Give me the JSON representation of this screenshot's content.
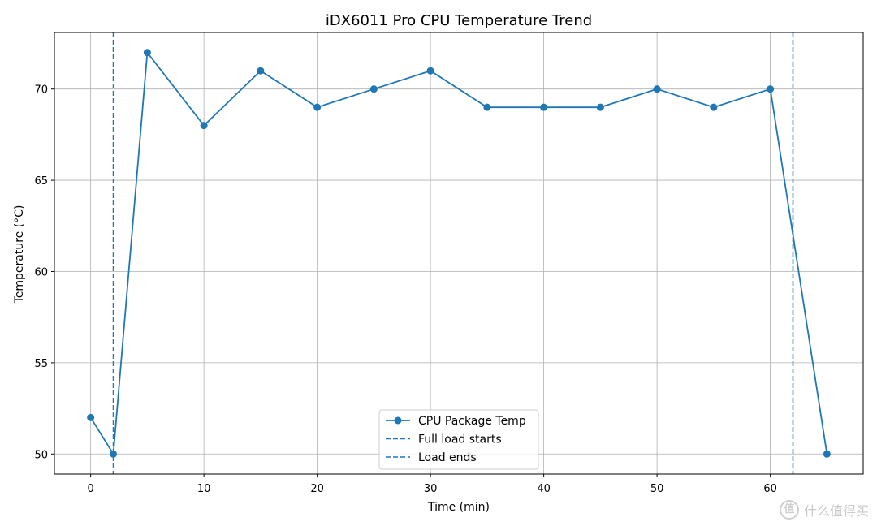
{
  "chart_data": {
    "type": "line",
    "title": "iDX6011 Pro CPU Temperature Trend",
    "xlabel": "Time (min)",
    "ylabel": "Temperature (°C)",
    "xlim": [
      -3.2,
      68.2
    ],
    "ylim": [
      48.9,
      73.1
    ],
    "xticks": [
      0,
      10,
      20,
      30,
      40,
      50,
      60
    ],
    "yticks": [
      50,
      55,
      60,
      65,
      70
    ],
    "grid": true,
    "legend_position": "lower-center",
    "series": [
      {
        "name": "CPU Package Temp",
        "color": "#1f77b4",
        "x": [
          0,
          2,
          5,
          10,
          15,
          20,
          25,
          30,
          35,
          40,
          45,
          50,
          55,
          60,
          65
        ],
        "y": [
          52,
          50,
          72,
          68,
          71,
          69,
          70,
          71,
          69,
          69,
          69,
          70,
          69,
          70,
          50
        ]
      }
    ],
    "vlines": [
      {
        "name": "Full load starts",
        "x": 2,
        "color": "#1f77b4",
        "style": "dashed"
      },
      {
        "name": "Load ends",
        "x": 62,
        "color": "#1f77b4",
        "style": "dashed"
      }
    ]
  },
  "watermark": {
    "text": "什么值得买",
    "badge": "值"
  }
}
